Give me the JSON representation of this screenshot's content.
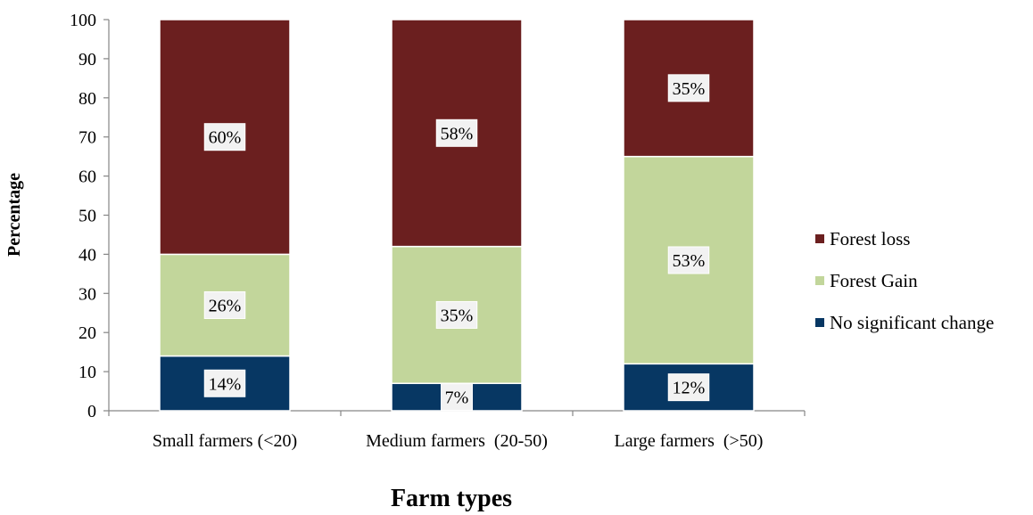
{
  "chart_data": {
    "type": "bar",
    "stacked": true,
    "categories": [
      "Small farmers (<20)",
      "Medium farmers  (20-50)",
      "Large farmers  (>50)"
    ],
    "series": [
      {
        "name": "No significant change",
        "values": [
          14,
          7,
          12
        ],
        "labels": [
          "14%",
          "7%",
          "12%"
        ],
        "color": "#073763"
      },
      {
        "name": "Forest Gain",
        "values": [
          26,
          35,
          53
        ],
        "labels": [
          "26%",
          "35%",
          "53%"
        ],
        "color": "#c2d69b"
      },
      {
        "name": "Forest loss",
        "values": [
          60,
          58,
          35
        ],
        "labels": [
          "60%",
          "58%",
          "35%"
        ],
        "color": "#6b1f1f"
      }
    ],
    "xlabel": "Farm types",
    "ylabel": "Percentage",
    "ylim": [
      0,
      100
    ],
    "yticks": [
      0,
      10,
      20,
      30,
      40,
      50,
      60,
      70,
      80,
      90,
      100
    ],
    "grid": false,
    "legend_position": "right"
  }
}
